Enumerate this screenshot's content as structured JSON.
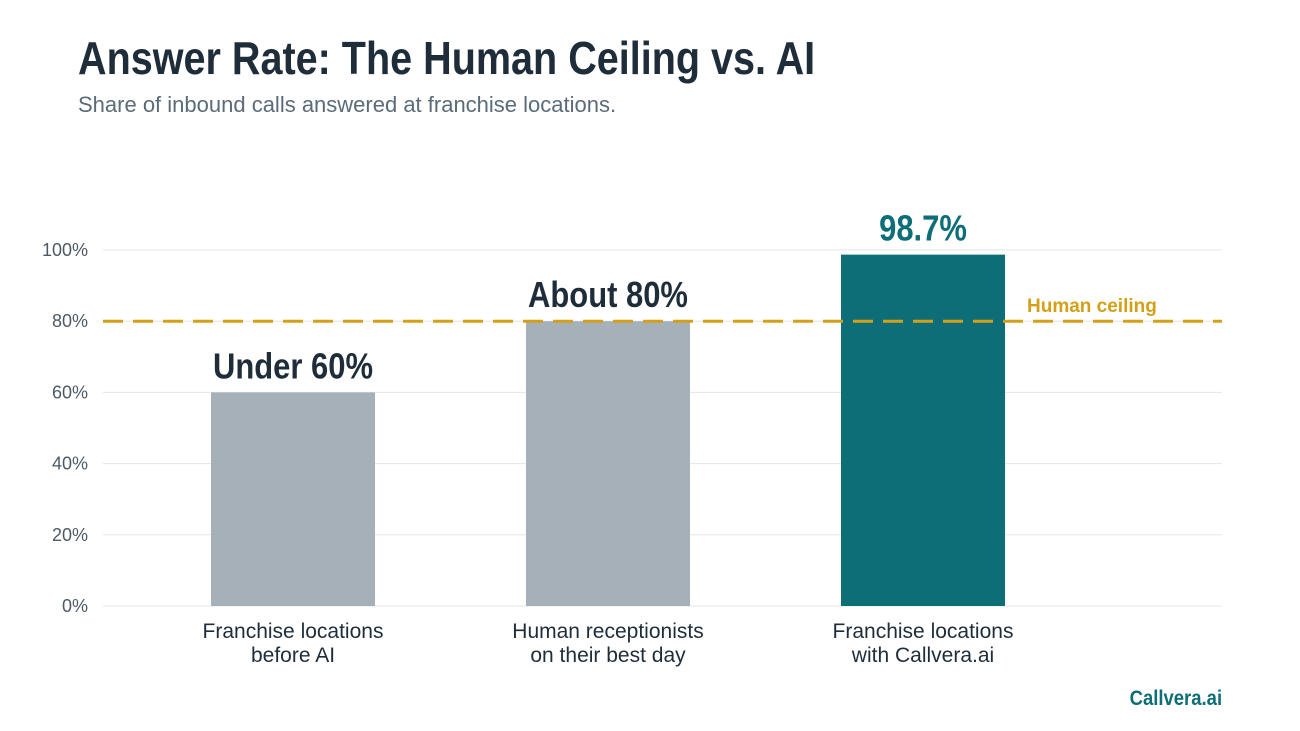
{
  "chart_data": {
    "type": "bar",
    "title": "Answer Rate: The Human Ceiling vs. AI",
    "subtitle": "Share of inbound calls answered at franchise locations.",
    "categories": [
      [
        "Franchise locations",
        "before AI"
      ],
      [
        "Human receptionists",
        "on their best day"
      ],
      [
        "Franchise locations",
        "with Callvera.ai"
      ]
    ],
    "values": [
      60,
      80,
      98.7
    ],
    "data_labels": [
      "Under 60%",
      "About 80%",
      "98.7%"
    ],
    "bar_colors": [
      "#a5b0b8",
      "#a5b0b8",
      "#0e6e78"
    ],
    "data_label_colors": [
      "#1f2d3a",
      "#1f2d3a",
      "#0e6e78"
    ],
    "ylim": [
      0,
      100
    ],
    "yticks": [
      0,
      20,
      40,
      60,
      80,
      100
    ],
    "ytick_labels": [
      "0%",
      "20%",
      "40%",
      "60%",
      "80%",
      "100%"
    ],
    "grid": true,
    "reference_line": {
      "value": 80,
      "label": "Human ceiling",
      "color": "#d4a017",
      "style": "dashed"
    },
    "xlabel": "",
    "ylabel": ""
  },
  "brand": "Callvera.ai"
}
